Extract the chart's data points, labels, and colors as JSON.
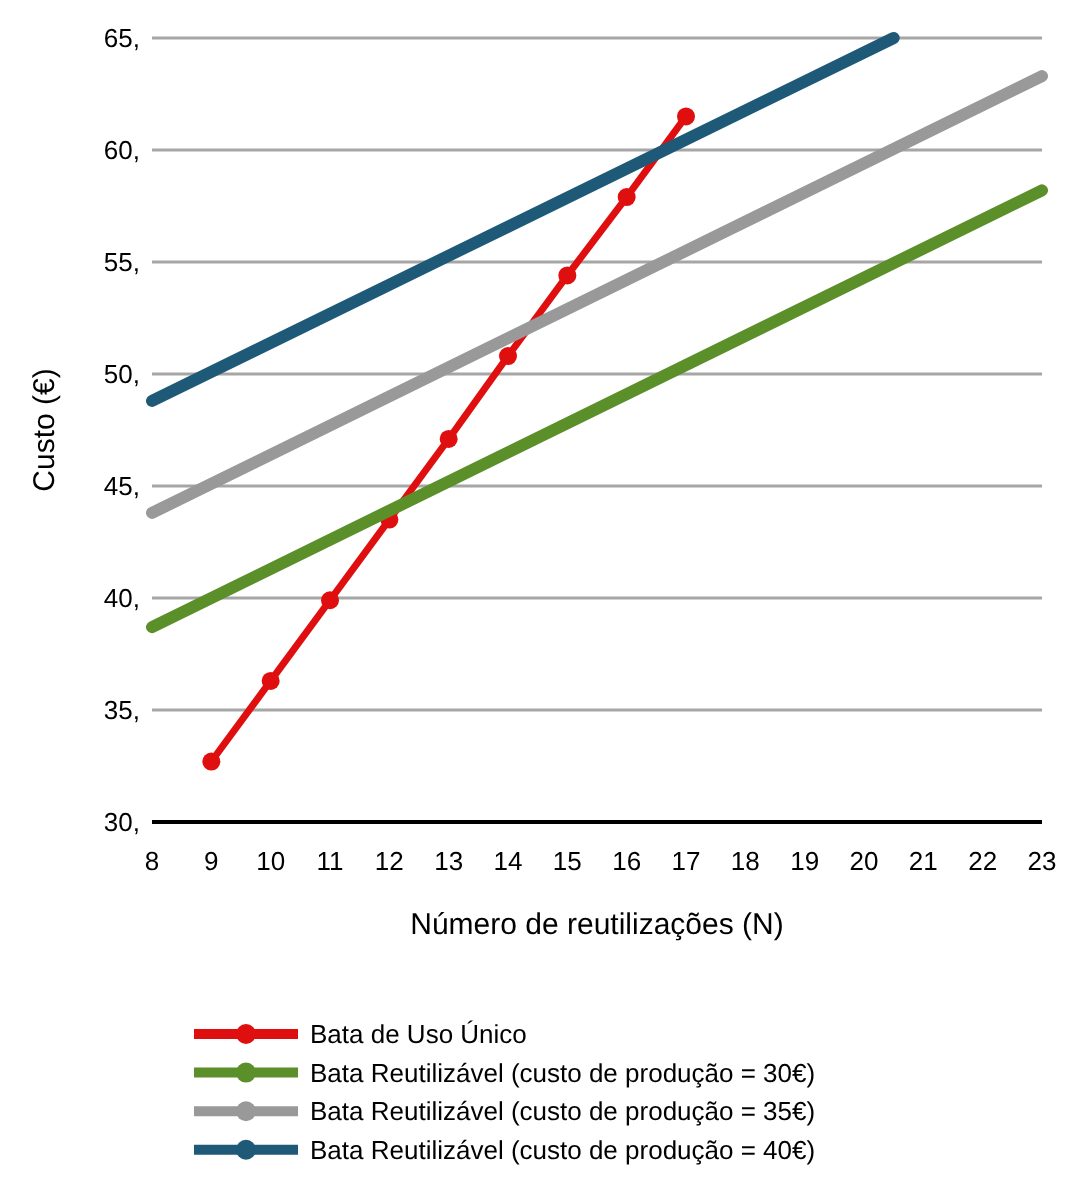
{
  "chart_data": {
    "type": "line",
    "xlabel": "Número de reutilizações (N)",
    "ylabel": "Custo (€)",
    "xlim": [
      8,
      23
    ],
    "xticks": [
      8,
      9,
      10,
      11,
      12,
      13,
      14,
      15,
      16,
      17,
      18,
      19,
      20,
      21,
      22,
      23
    ],
    "ylim": [
      30,
      65
    ],
    "yticks": [
      {
        "value": 30,
        "label": "30,"
      },
      {
        "value": 35,
        "label": "35,"
      },
      {
        "value": 40,
        "label": "40,"
      },
      {
        "value": 45,
        "label": "45,"
      },
      {
        "value": 50,
        "label": "50,"
      },
      {
        "value": 55,
        "label": "55,"
      },
      {
        "value": 60,
        "label": "60,"
      },
      {
        "value": 65,
        "label": "65,"
      }
    ],
    "grid": "y",
    "legend": "bottom",
    "marker": "circle",
    "line_style": "solid",
    "series": [
      {
        "name": "Bata de Uso Único",
        "color": "#e00f0f",
        "marker": "circle",
        "x": [
          9,
          10,
          11,
          12,
          13,
          14,
          15,
          16,
          17
        ],
        "values": [
          32.7,
          36.3,
          39.9,
          43.5,
          47.1,
          50.8,
          54.4,
          57.9,
          61.5
        ]
      },
      {
        "name": "Bata Reutilizável (custo de produção = 30€)",
        "color": "#5b8f29",
        "marker": "none",
        "x": [
          8,
          23
        ],
        "values": [
          38.7,
          58.2
        ]
      },
      {
        "name": "Bata Reutilizável (custo de produção = 35€)",
        "color": "#999999",
        "marker": "none",
        "x": [
          8,
          23
        ],
        "values": [
          43.8,
          63.3
        ]
      },
      {
        "name": "Bata Reutilizável (custo de produção = 40€)",
        "color": "#1e5a78",
        "marker": "none",
        "x": [
          8,
          20.5
        ],
        "values": [
          48.8,
          65
        ]
      }
    ]
  }
}
